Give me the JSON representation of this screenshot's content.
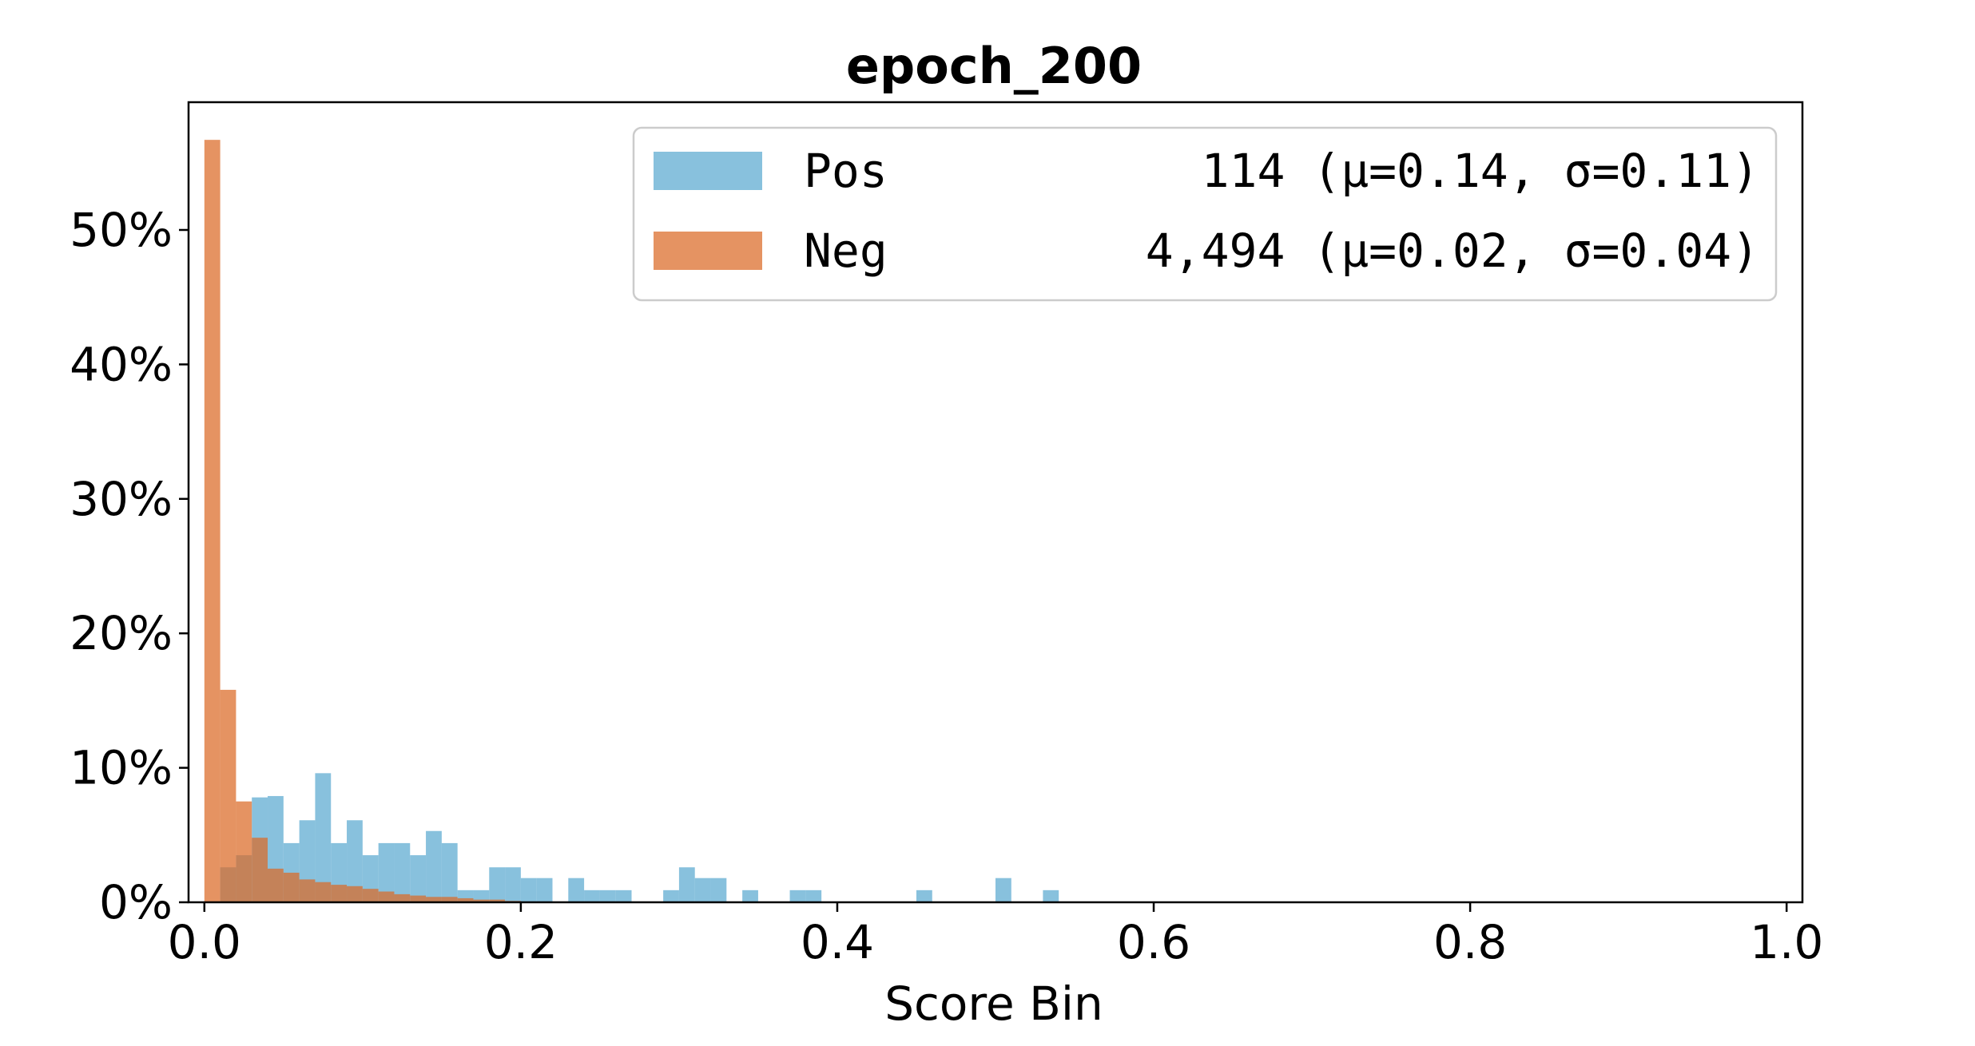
{
  "chart_data": {
    "type": "bar",
    "title": "epoch_200",
    "xlabel": "Score Bin",
    "ylabel": "",
    "xlim": [
      -0.01,
      1.01
    ],
    "ylim": [
      0,
      0.595
    ],
    "bin_width": 0.01,
    "x_ticks": [
      "0.0",
      "0.2",
      "0.4",
      "0.6",
      "0.8",
      "1.0"
    ],
    "y_ticks": [
      "0%",
      "10%",
      "20%",
      "30%",
      "40%",
      "50%"
    ],
    "x_tick_values": [
      0.0,
      0.2,
      0.4,
      0.6,
      0.8,
      1.0
    ],
    "y_tick_values": [
      0,
      0.1,
      0.2,
      0.3,
      0.4,
      0.5
    ],
    "legend_position": "upper right",
    "series": [
      {
        "name": "Pos",
        "legend_text": "114 (μ=0.14, σ=0.11)",
        "color": "#5aa9d0",
        "alpha": 0.72,
        "bins_start": [
          0.01,
          0.02,
          0.03,
          0.04,
          0.05,
          0.06,
          0.07,
          0.08,
          0.09,
          0.1,
          0.11,
          0.12,
          0.13,
          0.14,
          0.15,
          0.16,
          0.17,
          0.18,
          0.19,
          0.2,
          0.21,
          0.23,
          0.24,
          0.25,
          0.26,
          0.29,
          0.3,
          0.31,
          0.32,
          0.34,
          0.37,
          0.38,
          0.45,
          0.5,
          0.53
        ],
        "values": [
          0.026,
          0.035,
          0.078,
          0.079,
          0.044,
          0.061,
          0.096,
          0.044,
          0.061,
          0.035,
          0.044,
          0.044,
          0.035,
          0.053,
          0.044,
          0.009,
          0.009,
          0.026,
          0.026,
          0.018,
          0.018,
          0.018,
          0.009,
          0.009,
          0.009,
          0.009,
          0.026,
          0.018,
          0.018,
          0.009,
          0.009,
          0.009,
          0.009,
          0.018,
          0.009
        ]
      },
      {
        "name": "Neg",
        "legend_text": "4,494 (μ=0.02, σ=0.04)",
        "color": "#db6a25",
        "alpha": 0.72,
        "bins_start": [
          0.0,
          0.01,
          0.02,
          0.03,
          0.04,
          0.05,
          0.06,
          0.07,
          0.08,
          0.09,
          0.1,
          0.11,
          0.12,
          0.13,
          0.14,
          0.15,
          0.16,
          0.17,
          0.18,
          0.19
        ],
        "values": [
          0.567,
          0.158,
          0.075,
          0.048,
          0.025,
          0.022,
          0.017,
          0.015,
          0.013,
          0.012,
          0.01,
          0.008,
          0.006,
          0.005,
          0.004,
          0.004,
          0.003,
          0.002,
          0.002,
          0.001
        ]
      }
    ]
  }
}
